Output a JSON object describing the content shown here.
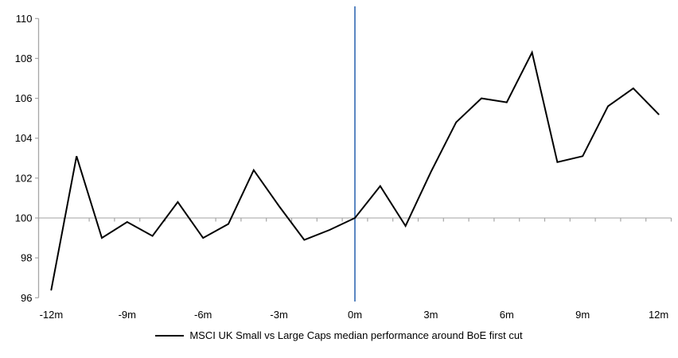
{
  "chart_data": {
    "type": "line",
    "title": "",
    "x": [
      -12,
      -11,
      -10,
      -9,
      -8,
      -7,
      -6,
      -5,
      -4,
      -3,
      -2,
      -1,
      0,
      1,
      2,
      3,
      4,
      5,
      6,
      7,
      8,
      9,
      10,
      11,
      12
    ],
    "series": [
      {
        "name": "MSCI UK Small vs Large Caps median performance around BoE first cut",
        "color": "#000000",
        "values": [
          96.4,
          103.1,
          99.0,
          99.8,
          99.1,
          100.8,
          99.0,
          99.7,
          102.4,
          100.6,
          98.9,
          99.4,
          100.0,
          101.6,
          99.6,
          102.3,
          104.8,
          106.0,
          105.8,
          108.3,
          102.8,
          103.1,
          105.6,
          106.5,
          105.2
        ]
      }
    ],
    "xlabel": "",
    "ylabel": "",
    "xlim": [
      -12.5,
      12.5
    ],
    "ylim": [
      96,
      110
    ],
    "y_ticks": [
      96,
      98,
      100,
      102,
      104,
      106,
      108,
      110
    ],
    "x_tick_positions": [
      -12,
      -9,
      -6,
      -3,
      0,
      3,
      6,
      9,
      12
    ],
    "x_tick_labels": [
      "-12m",
      "-9m",
      "-6m",
      "-3m",
      "0m",
      "3m",
      "6m",
      "9m",
      "12m"
    ],
    "grid": "off",
    "legend_position": "bottom",
    "reference_lines": {
      "horizontal_baseline": {
        "value": 100,
        "color": "#b3b3b3"
      },
      "vertical_event_line": {
        "value": 0,
        "color": "#5b87c2"
      }
    },
    "axis_color": "#a6a6a6"
  }
}
